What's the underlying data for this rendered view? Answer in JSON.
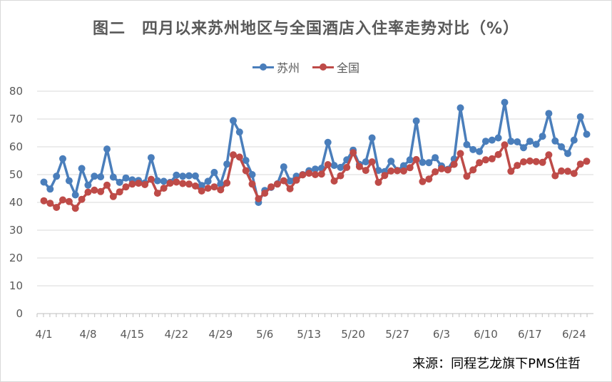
{
  "title": "图二　四月以来苏州地区与全国酒店入住率走势对比（%）",
  "source": "来源：同程艺龙旗下PMS住哲",
  "colors": {
    "suzhou": "#4a7ebb",
    "national": "#be4b48",
    "grid": "#d9d9d9",
    "axis": "#bfbfbf"
  },
  "chart_data": {
    "type": "line",
    "title": "图二　四月以来苏州地区与全国酒店入住率走势对比（%）",
    "xlabel": "",
    "ylabel": "",
    "ylim": [
      0,
      80
    ],
    "yticks": [
      0,
      10,
      20,
      30,
      40,
      50,
      60,
      70,
      80
    ],
    "grid": true,
    "legend_position": "top-center",
    "x_tick_labels": [
      "4/1",
      "4/8",
      "4/15",
      "4/22",
      "4/29",
      "5/6",
      "5/13",
      "5/20",
      "5/27",
      "6/3",
      "6/10",
      "6/17",
      "6/24"
    ],
    "x_tick_index": [
      0,
      7,
      14,
      21,
      28,
      35,
      42,
      49,
      56,
      63,
      70,
      77,
      84
    ],
    "x": [
      "4/1",
      "4/2",
      "4/3",
      "4/4",
      "4/5",
      "4/6",
      "4/7",
      "4/8",
      "4/9",
      "4/10",
      "4/11",
      "4/12",
      "4/13",
      "4/14",
      "4/15",
      "4/16",
      "4/17",
      "4/18",
      "4/19",
      "4/20",
      "4/21",
      "4/22",
      "4/23",
      "4/24",
      "4/25",
      "4/26",
      "4/27",
      "4/28",
      "4/29",
      "4/30",
      "5/1",
      "5/2",
      "5/3",
      "5/4",
      "5/5",
      "5/6",
      "5/7",
      "5/8",
      "5/9",
      "5/10",
      "5/11",
      "5/12",
      "5/13",
      "5/14",
      "5/15",
      "5/16",
      "5/17",
      "5/18",
      "5/19",
      "5/20",
      "5/21",
      "5/22",
      "5/23",
      "5/24",
      "5/25",
      "5/26",
      "5/27",
      "5/28",
      "5/29",
      "5/30",
      "5/31",
      "6/1",
      "6/2",
      "6/3",
      "6/4",
      "6/5",
      "6/6",
      "6/7",
      "6/8",
      "6/9",
      "6/10",
      "6/11",
      "6/12",
      "6/13",
      "6/14",
      "6/15",
      "6/16",
      "6/17",
      "6/18",
      "6/19",
      "6/20",
      "6/21",
      "6/22",
      "6/23",
      "6/24",
      "6/25",
      "6/26"
    ],
    "series": [
      {
        "name": "苏州",
        "color": "#4a7ebb",
        "values": [
          47.3,
          44.8,
          49.4,
          55.7,
          47.8,
          42.7,
          52.2,
          46.2,
          49.4,
          49.2,
          59.2,
          49.1,
          47.2,
          48.8,
          48.1,
          47.9,
          47.0,
          56.1,
          47.8,
          47.6,
          47.2,
          49.8,
          49.4,
          49.6,
          49.5,
          46.1,
          47.6,
          50.8,
          46.6,
          53.8,
          69.4,
          65.3,
          55.1,
          50.0,
          40.0,
          44.3,
          45.4,
          46.7,
          52.8,
          47.7,
          49.4,
          50.0,
          51.4,
          52.0,
          52.3,
          61.6,
          53.3,
          52.6,
          55.3,
          58.8,
          53.7,
          54.6,
          63.2,
          51.5,
          51.1,
          54.8,
          51.5,
          53.2,
          55.3,
          69.3,
          54.4,
          54.3,
          56.1,
          53.1,
          51.9,
          55.6,
          74.0,
          60.8,
          59.0,
          58.3,
          62.0,
          62.4,
          63.2,
          76.0,
          62.0,
          61.8,
          59.7,
          62.0,
          60.9,
          63.8,
          72.0,
          62.1,
          60.0,
          57.6,
          62.4,
          70.8,
          64.5
        ]
      },
      {
        "name": "全国",
        "color": "#be4b48",
        "values": [
          40.6,
          39.7,
          38.2,
          40.9,
          40.3,
          37.9,
          41.1,
          43.7,
          44.4,
          43.9,
          46.2,
          42.1,
          43.8,
          45.6,
          46.6,
          46.9,
          46.4,
          48.3,
          43.3,
          45.1,
          46.9,
          47.3,
          46.8,
          46.6,
          45.9,
          44.1,
          45.1,
          45.6,
          44.5,
          47.0,
          57.1,
          56.3,
          51.4,
          46.6,
          41.3,
          43.3,
          45.6,
          46.6,
          47.8,
          44.9,
          48.0,
          49.9,
          50.5,
          50.0,
          50.2,
          53.6,
          47.7,
          49.6,
          52.6,
          57.9,
          52.9,
          51.5,
          54.6,
          47.2,
          49.7,
          51.3,
          51.4,
          51.3,
          52.5,
          55.4,
          47.5,
          48.4,
          51.0,
          52.1,
          51.7,
          53.7,
          57.6,
          49.4,
          51.7,
          54.3,
          55.3,
          55.7,
          57.2,
          60.7,
          51.2,
          53.3,
          54.6,
          54.9,
          54.7,
          54.4,
          57.1,
          49.6,
          51.3,
          51.2,
          50.4,
          53.8,
          54.8
        ]
      }
    ]
  }
}
